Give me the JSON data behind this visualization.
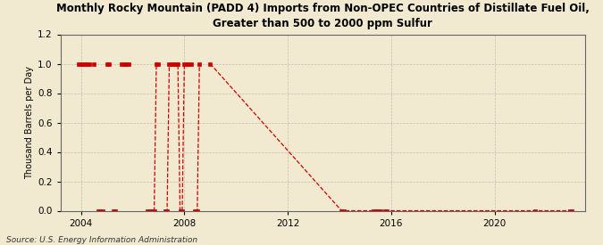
{
  "title": "Monthly Rocky Mountain (PADD 4) Imports from Non-OPEC Countries of Distillate Fuel Oil,\nGreater than 500 to 2000 ppm Sulfur",
  "ylabel": "Thousand Barrels per Day",
  "source": "Source: U.S. Energy Information Administration",
  "background_color": "#f2ead0",
  "line_color": "#cc0000",
  "grid_color": "#aaaaaa",
  "xlim_start": 2003.2,
  "xlim_end": 2023.5,
  "ylim": [
    0.0,
    1.2
  ],
  "yticks": [
    0.0,
    0.2,
    0.4,
    0.6,
    0.8,
    1.0,
    1.2
  ],
  "xticks": [
    2004,
    2008,
    2012,
    2016,
    2020
  ],
  "series": [
    [
      2003.917,
      1.0
    ],
    [
      2004.0,
      1.0
    ],
    [
      2004.083,
      1.0
    ],
    [
      2004.167,
      1.0
    ],
    [
      2004.25,
      1.0
    ],
    [
      2004.333,
      1.0
    ],
    [
      2004.417,
      null
    ],
    [
      2004.5,
      1.0
    ],
    [
      2004.583,
      null
    ],
    [
      2004.667,
      0.0
    ],
    [
      2004.75,
      0.0
    ],
    [
      2004.833,
      0.0
    ],
    [
      2004.917,
      null
    ],
    [
      2005.0,
      1.0
    ],
    [
      2005.083,
      1.0
    ],
    [
      2005.167,
      null
    ],
    [
      2005.25,
      0.0
    ],
    [
      2005.333,
      0.0
    ],
    [
      2005.417,
      null
    ],
    [
      2005.5,
      null
    ],
    [
      2005.583,
      1.0
    ],
    [
      2005.667,
      1.0
    ],
    [
      2005.75,
      1.0
    ],
    [
      2005.833,
      1.0
    ],
    [
      2005.917,
      null
    ],
    [
      2006.0,
      null
    ],
    [
      2006.083,
      null
    ],
    [
      2006.167,
      null
    ],
    [
      2006.25,
      null
    ],
    [
      2006.333,
      null
    ],
    [
      2006.417,
      null
    ],
    [
      2006.5,
      null
    ],
    [
      2006.583,
      0.0
    ],
    [
      2006.667,
      0.0
    ],
    [
      2006.75,
      0.0
    ],
    [
      2006.833,
      0.0
    ],
    [
      2006.917,
      1.0
    ],
    [
      2007.0,
      1.0
    ],
    [
      2007.083,
      null
    ],
    [
      2007.167,
      null
    ],
    [
      2007.25,
      0.0
    ],
    [
      2007.333,
      0.0
    ],
    [
      2007.417,
      1.0
    ],
    [
      2007.5,
      1.0
    ],
    [
      2007.583,
      1.0
    ],
    [
      2007.667,
      1.0
    ],
    [
      2007.75,
      1.0
    ],
    [
      2007.833,
      0.0
    ],
    [
      2007.917,
      0.0
    ],
    [
      2008.0,
      1.0
    ],
    [
      2008.083,
      1.0
    ],
    [
      2008.167,
      1.0
    ],
    [
      2008.25,
      1.0
    ],
    [
      2008.333,
      null
    ],
    [
      2008.417,
      0.0
    ],
    [
      2008.5,
      0.0
    ],
    [
      2008.583,
      1.0
    ],
    [
      2008.667,
      null
    ],
    [
      2008.75,
      null
    ],
    [
      2008.833,
      null
    ],
    [
      2008.917,
      null
    ],
    [
      2009.0,
      1.0
    ],
    [
      2014.083,
      0.0
    ],
    [
      2014.167,
      0.0
    ],
    [
      2015.333,
      0.0
    ],
    [
      2015.417,
      0.0
    ],
    [
      2015.5,
      0.0
    ],
    [
      2015.583,
      0.0
    ],
    [
      2015.667,
      null
    ],
    [
      2015.75,
      0.0
    ],
    [
      2015.833,
      0.0
    ],
    [
      2021.583,
      0.0
    ],
    [
      2022.917,
      0.0
    ],
    [
      2023.0,
      0.0
    ]
  ]
}
